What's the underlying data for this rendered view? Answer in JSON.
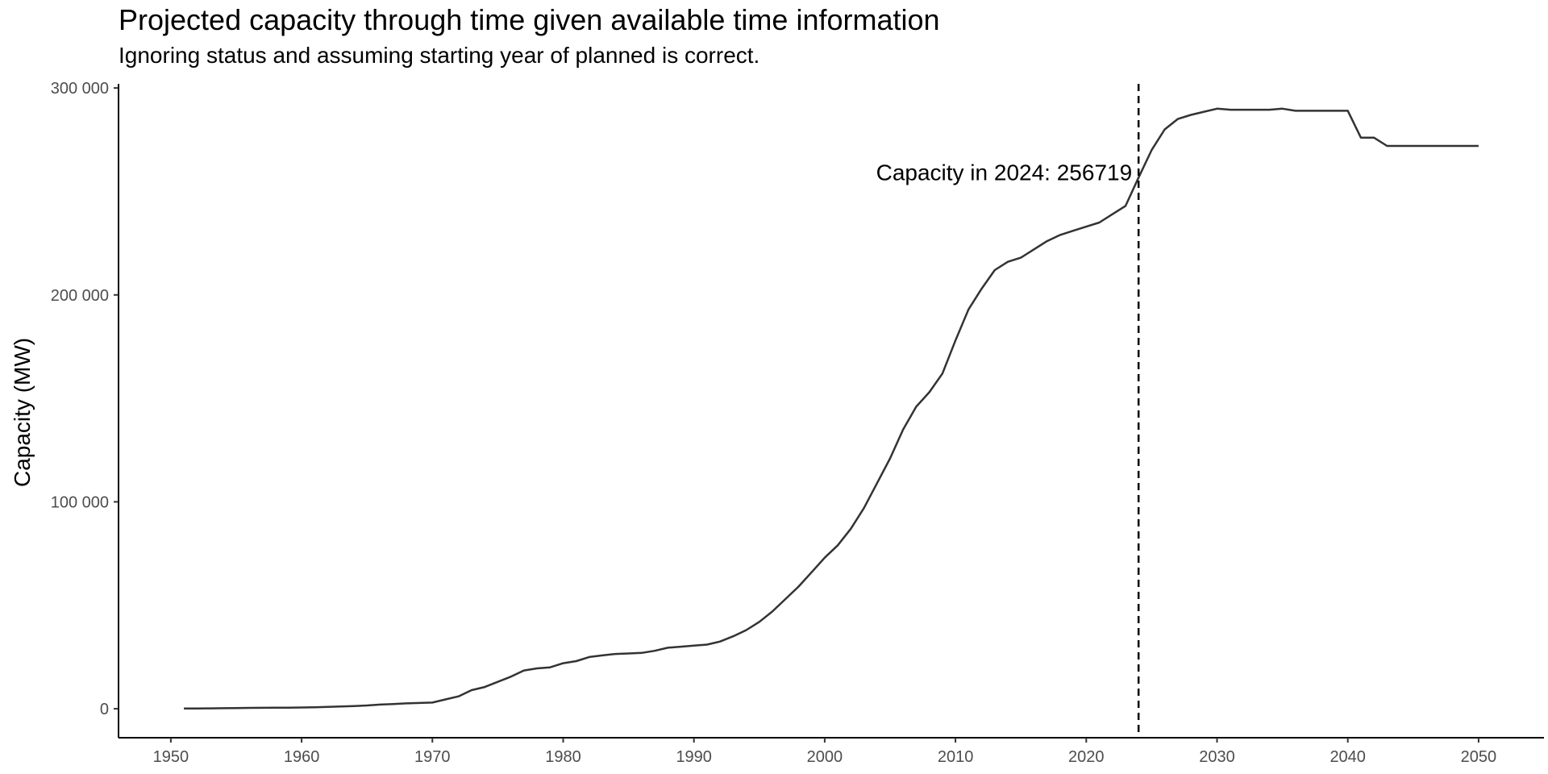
{
  "chart_data": {
    "type": "line",
    "title": "Projected capacity through time given available time information",
    "subtitle": "Ignoring status and assuming starting year of planned is correct.",
    "xlabel": "",
    "ylabel": "Capacity (MW)",
    "xlim": [
      1946,
      2055
    ],
    "ylim": [
      -14000,
      302000
    ],
    "x_ticks": [
      1950,
      1960,
      1970,
      1980,
      1990,
      2000,
      2010,
      2020,
      2030,
      2040,
      2050
    ],
    "x_tick_labels": [
      "1950",
      "1960",
      "1970",
      "1980",
      "1990",
      "2000",
      "2010",
      "2020",
      "2030",
      "2040",
      "2050"
    ],
    "y_ticks": [
      0,
      100000,
      200000,
      300000
    ],
    "y_tick_labels": [
      "0",
      "100 000",
      "200 000",
      "300 000"
    ],
    "grid": false,
    "line_color": "#333333",
    "reference_line": {
      "x": 2024,
      "style": "dashed",
      "color": "#000000"
    },
    "annotation": {
      "text": "Capacity in 2024: 256719",
      "x": 2024,
      "y": 259000
    },
    "series": [
      {
        "x": [
          1951,
          1952,
          1953,
          1954,
          1955,
          1956,
          1957,
          1958,
          1959,
          1960,
          1961,
          1962,
          1963,
          1964,
          1965,
          1966,
          1967,
          1968,
          1969,
          1970,
          1971,
          1972,
          1973,
          1974,
          1975,
          1976,
          1977,
          1978,
          1979,
          1980,
          1981,
          1982,
          1983,
          1984,
          1985,
          1986,
          1987,
          1988,
          1989,
          1990,
          1991,
          1992,
          1993,
          1994,
          1995,
          1996,
          1997,
          1998,
          1999,
          2000,
          2001,
          2002,
          2003,
          2004,
          2005,
          2006,
          2007,
          2008,
          2009,
          2010,
          2011,
          2012,
          2013,
          2014,
          2015,
          2016,
          2017,
          2018,
          2019,
          2020,
          2021,
          2022,
          2023,
          2024,
          2025,
          2026,
          2027,
          2028,
          2029,
          2030,
          2031,
          2032,
          2033,
          2034,
          2035,
          2036,
          2037,
          2038,
          2039,
          2040,
          2041,
          2042,
          2043,
          2044,
          2045,
          2046,
          2047,
          2048,
          2049,
          2050
        ],
        "values": [
          100,
          150,
          200,
          250,
          300,
          400,
          450,
          500,
          550,
          600,
          700,
          900,
          1100,
          1300,
          1600,
          2000,
          2300,
          2600,
          2800,
          3000,
          4500,
          6000,
          9000,
          10500,
          13000,
          15500,
          18500,
          19500,
          20000,
          22000,
          23000,
          25000,
          25800,
          26500,
          26700,
          27000,
          28000,
          29500,
          30000,
          30500,
          31000,
          32500,
          35000,
          38000,
          42000,
          47000,
          53000,
          59000,
          66000,
          73000,
          79000,
          87000,
          97000,
          109000,
          121000,
          135000,
          146000,
          153000,
          162000,
          178000,
          193000,
          203000,
          212000,
          216000,
          218000,
          222000,
          226000,
          229000,
          231000,
          233000,
          235000,
          239000,
          243000,
          256719,
          270000,
          280000,
          285000,
          287000,
          288500,
          290000,
          289500,
          289500,
          289500,
          289500,
          290000,
          289000,
          289000,
          289000,
          289000,
          289000,
          276000,
          276000,
          272000,
          272000,
          272000,
          272000,
          272000,
          272000,
          272000,
          272000
        ]
      }
    ]
  }
}
